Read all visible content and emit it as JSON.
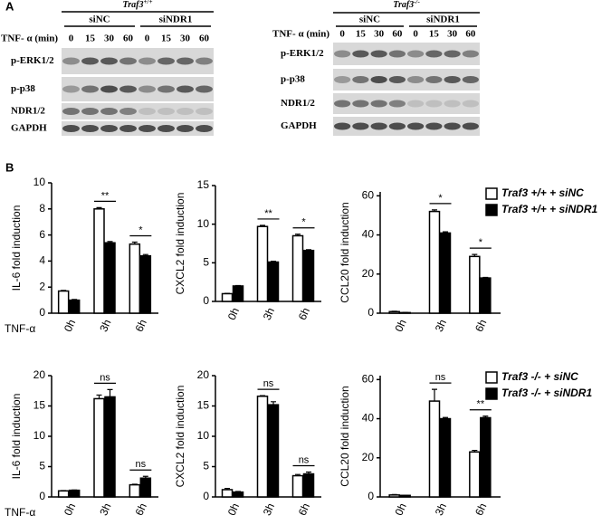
{
  "panel_a": {
    "label": "A",
    "blots": [
      {
        "genotype": "Traf3",
        "genotype_sup": "+/+",
        "groups": [
          "siNC",
          "siNDR1"
        ],
        "time_label": "TNF- α (min)",
        "times": [
          0,
          15,
          30,
          60,
          0,
          15,
          30,
          60
        ],
        "rows": [
          "p-ERK1/2",
          "p-p38",
          "NDR1/2",
          "GAPDH"
        ]
      },
      {
        "genotype": "Traf3",
        "genotype_sup": "-/-",
        "groups": [
          "siNC",
          "siNDR1"
        ],
        "time_label": "TNF- α (min)",
        "times": [
          0,
          15,
          30,
          60,
          0,
          15,
          30,
          60
        ],
        "rows": [
          "p-ERK1/2",
          "p-p38",
          "NDR1/2",
          "GAPDH"
        ]
      }
    ]
  },
  "panel_b": {
    "label": "B"
  },
  "chart_data": [
    {
      "type": "bar",
      "y_label": "IL-6 fold induction",
      "x_label": "TNF-α",
      "categories": [
        "0h",
        "3h",
        "6h"
      ],
      "ylim": [
        0,
        10
      ],
      "yticks": [
        0,
        2,
        4,
        6,
        8,
        10
      ],
      "edge_color": "#000000",
      "series": [
        {
          "color": "#ffffff",
          "values": [
            1.7,
            8.0,
            5.3
          ],
          "errors": [
            0.05,
            0.1,
            0.15
          ]
        },
        {
          "color": "#000000",
          "values": [
            1.0,
            5.4,
            4.4
          ],
          "errors": [
            0.05,
            0.1,
            0.1
          ]
        }
      ],
      "significance": [
        null,
        "**",
        "*"
      ]
    },
    {
      "type": "bar",
      "y_label": "CXCL2 fold induction",
      "categories": [
        "0h",
        "3h",
        "6h"
      ],
      "ylim": [
        0,
        15
      ],
      "yticks": [
        0,
        5,
        10,
        15
      ],
      "edge_color": "#000000",
      "series": [
        {
          "color": "#ffffff",
          "values": [
            1.0,
            9.7,
            8.5
          ],
          "errors": [
            0.05,
            0.15,
            0.2
          ]
        },
        {
          "color": "#000000",
          "values": [
            2.0,
            5.1,
            6.6
          ],
          "errors": [
            0.05,
            0.1,
            0.1
          ]
        }
      ],
      "significance": [
        null,
        "**",
        "*"
      ]
    },
    {
      "type": "bar",
      "y_label": "CCL20 fold induction",
      "categories": [
        "0h",
        "3h",
        "6h"
      ],
      "ylim": [
        0,
        62
      ],
      "yticks": [
        0,
        20,
        40,
        60
      ],
      "edge_color": "#000000",
      "legend": "upper right",
      "series": [
        {
          "name": "Traf3 +/+ + siNC",
          "color": "#ffffff",
          "values": [
            0.8,
            52,
            29
          ],
          "errors": [
            0.2,
            0.8,
            1.0
          ]
        },
        {
          "name": "Traf3 +/+ + siNDR1",
          "color": "#000000",
          "values": [
            0.3,
            41,
            18
          ],
          "errors": [
            0.1,
            0.6,
            0.3
          ]
        }
      ],
      "significance": [
        null,
        "*",
        "*"
      ]
    },
    {
      "type": "bar",
      "y_label": "IL-6 fold induction",
      "x_label": "TNF-α",
      "categories": [
        "0h",
        "3h",
        "6h"
      ],
      "ylim": [
        0,
        20
      ],
      "yticks": [
        0,
        5,
        10,
        15,
        20
      ],
      "edge_color": "#000000",
      "series": [
        {
          "color": "#ffffff",
          "values": [
            1.0,
            16.2,
            2.0
          ],
          "errors": [
            0.05,
            0.6,
            0.1
          ]
        },
        {
          "color": "#000000",
          "values": [
            1.1,
            16.5,
            3.1
          ],
          "errors": [
            0.05,
            1.2,
            0.3
          ]
        }
      ],
      "significance": [
        null,
        "ns",
        "ns"
      ]
    },
    {
      "type": "bar",
      "y_label": "CXCL2 fold induction",
      "categories": [
        "0h",
        "3h",
        "6h"
      ],
      "ylim": [
        0,
        20
      ],
      "yticks": [
        0,
        5,
        10,
        15,
        20
      ],
      "edge_color": "#000000",
      "series": [
        {
          "color": "#ffffff",
          "values": [
            1.2,
            16.6,
            3.5
          ],
          "errors": [
            0.2,
            0.1,
            0.2
          ]
        },
        {
          "color": "#000000",
          "values": [
            0.8,
            15.2,
            3.8
          ],
          "errors": [
            0.1,
            0.5,
            0.3
          ]
        }
      ],
      "significance": [
        null,
        "ns",
        "ns"
      ]
    },
    {
      "type": "bar",
      "y_label": "CCL20 fold induction",
      "categories": [
        "0h",
        "3h",
        "6h"
      ],
      "ylim": [
        0,
        62
      ],
      "yticks": [
        0,
        20,
        40,
        60
      ],
      "edge_color": "#000000",
      "legend": "upper right",
      "series": [
        {
          "name": "Traf3 -/- + siNC",
          "color": "#ffffff",
          "values": [
            1.0,
            49,
            23
          ],
          "errors": [
            0.2,
            6,
            0.8
          ]
        },
        {
          "name": "Traf3 -/- + siNDR1",
          "color": "#000000",
          "values": [
            0.8,
            40,
            40.5
          ],
          "errors": [
            0.1,
            0.6,
            0.8
          ]
        }
      ],
      "significance": [
        null,
        "ns",
        "**"
      ]
    }
  ]
}
